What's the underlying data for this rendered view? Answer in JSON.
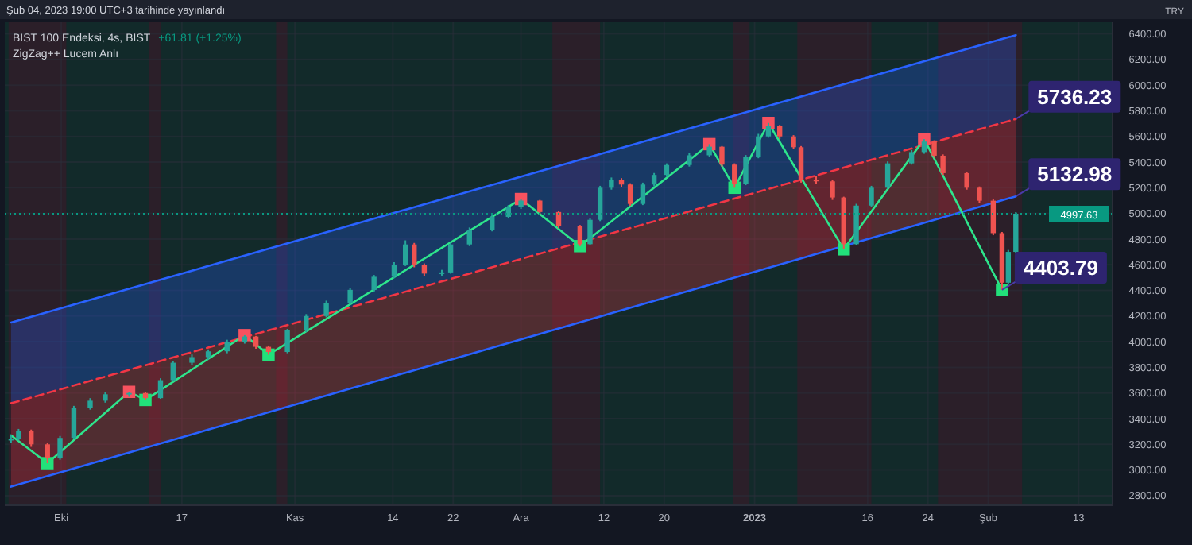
{
  "chart_data": {
    "type": "candlestick",
    "title": "BIST 100 Endeksi, 4s, BIST",
    "subtitle": "ZigZag++ Lucem Anlı",
    "annotations": [
      "+61.81 (+1.25%)",
      "Şub 04, 2023 19:00 UTC+3 tarihinde yayınlandı",
      "TRY",
      {
        "text": "5736.23",
        "x": "2023-02-04T16:00",
        "y": 5736.23
      },
      {
        "text": "5132.98",
        "x": "2023-02-04T16:00",
        "y": 5132.98
      },
      {
        "text": "4403.79",
        "x": "2023-02-02T20:00",
        "y": 4403.79
      }
    ],
    "x": [
      "2022-09-24T08:00",
      "2022-09-25T08:00",
      "2022-09-27T00:00",
      "2022-09-29T04:00",
      "2022-09-30T20:00",
      "2022-10-02T16:00",
      "2022-10-04T20:00",
      "2022-10-06T20:00",
      "2022-10-10T00:00",
      "2022-10-12T04:00",
      "2022-10-14T04:00",
      "2022-10-15T20:00",
      "2022-10-18T08:00",
      "2022-10-20T12:00",
      "2022-10-23T00:00",
      "2022-10-25T08:00",
      "2022-10-26T20:00",
      "2022-10-28T12:00",
      "2022-10-31T00:00",
      "2022-11-02T12:00",
      "2022-11-05T04:00",
      "2022-11-08T08:00",
      "2022-11-11T12:00",
      "2022-11-14T04:00",
      "2022-11-15T16:00",
      "2022-11-16T20:00",
      "2022-11-18T04:00",
      "2022-11-20T12:00",
      "2022-11-21T16:00",
      "2022-11-24T04:00",
      "2022-11-27T04:00",
      "2022-11-29T08:00",
      "2022-12-01T00:00",
      "2022-12-03T12:00",
      "2022-12-06T00:00",
      "2022-12-08T20:00",
      "2022-12-10T04:00",
      "2022-12-11T12:00",
      "2022-12-13T00:00",
      "2022-12-14T08:00",
      "2022-12-15T12:00",
      "2022-12-17T04:00",
      "2022-12-18T16:00",
      "2022-12-20T08:00",
      "2022-12-23T08:00",
      "2022-12-26T00:00",
      "2022-12-27T16:00",
      "2022-12-29T08:00",
      "2022-12-30T20:00",
      "2023-01-01T12:00",
      "2023-01-02T20:00",
      "2023-01-04T08:00",
      "2023-01-06T04:00",
      "2023-01-07T04:00",
      "2023-01-09T04:00",
      "2023-01-11T08:00",
      "2023-01-12T20:00",
      "2023-01-14T12:00",
      "2023-01-16T12:00",
      "2023-01-18T16:00",
      "2023-01-21T20:00",
      "2023-01-23T12:00",
      "2023-01-24T20:00",
      "2023-01-26T00:00",
      "2023-01-29T04:00",
      "2023-01-30T20:00",
      "2023-02-01T16:00",
      "2023-02-02T20:00",
      "2023-02-03T16:00",
      "2023-02-04T16:00"
    ],
    "ohlc": [
      [
        3230,
        3270,
        3210,
        3243
      ],
      [
        3243,
        3320,
        3230,
        3306
      ],
      [
        3306,
        3315,
        3180,
        3200
      ],
      [
        3200,
        3210,
        3053,
        3090
      ],
      [
        3090,
        3265,
        3080,
        3250
      ],
      [
        3250,
        3500,
        3240,
        3483
      ],
      [
        3483,
        3560,
        3470,
        3540
      ],
      [
        3540,
        3605,
        3525,
        3590
      ],
      [
        3590,
        3609,
        3570,
        3600
      ],
      [
        3600,
        3605,
        3546,
        3560
      ],
      [
        3560,
        3715,
        3555,
        3700
      ],
      [
        3700,
        3850,
        3690,
        3836
      ],
      [
        3836,
        3900,
        3820,
        3880
      ],
      [
        3880,
        3940,
        3860,
        3925
      ],
      [
        3925,
        4015,
        3910,
        4000
      ],
      [
        4000,
        4051,
        3985,
        4040
      ],
      [
        4040,
        4045,
        3945,
        3960
      ],
      [
        3960,
        3970,
        3899,
        3920
      ],
      [
        3920,
        4100,
        3910,
        4089
      ],
      [
        4089,
        4215,
        4075,
        4200
      ],
      [
        4200,
        4320,
        4190,
        4303
      ],
      [
        4303,
        4420,
        4290,
        4404
      ],
      [
        4404,
        4520,
        4390,
        4506
      ],
      [
        4506,
        4620,
        4495,
        4600
      ],
      [
        4600,
        4790,
        4590,
        4758
      ],
      [
        4758,
        4770,
        4580,
        4600
      ],
      [
        4600,
        4610,
        4510,
        4531
      ],
      [
        4531,
        4560,
        4515,
        4540
      ],
      [
        4540,
        4770,
        4530,
        4758
      ],
      [
        4758,
        4890,
        4745,
        4872
      ],
      [
        4872,
        4990,
        4860,
        4973
      ],
      [
        4973,
        5065,
        4960,
        5050
      ],
      [
        5050,
        5112,
        5035,
        5100
      ],
      [
        5100,
        5105,
        4995,
        5011
      ],
      [
        5011,
        5020,
        4885,
        4900
      ],
      [
        4900,
        4910,
        4745,
        4760
      ],
      [
        4760,
        4965,
        4750,
        4950
      ],
      [
        4950,
        5215,
        4940,
        5200
      ],
      [
        5200,
        5280,
        5185,
        5263
      ],
      [
        5263,
        5275,
        5205,
        5225
      ],
      [
        5225,
        5235,
        5060,
        5074
      ],
      [
        5074,
        5240,
        5065,
        5225
      ],
      [
        5225,
        5315,
        5210,
        5300
      ],
      [
        5300,
        5390,
        5285,
        5377
      ],
      [
        5377,
        5470,
        5365,
        5453
      ],
      [
        5453,
        5540,
        5440,
        5520
      ],
      [
        5520,
        5525,
        5365,
        5380
      ],
      [
        5380,
        5390,
        5200,
        5230
      ],
      [
        5230,
        5455,
        5220,
        5440
      ],
      [
        5440,
        5620,
        5430,
        5600
      ],
      [
        5600,
        5705,
        5590,
        5680
      ],
      [
        5680,
        5690,
        5580,
        5600
      ],
      [
        5600,
        5610,
        5500,
        5516
      ],
      [
        5516,
        5525,
        5240,
        5263
      ],
      [
        5263,
        5290,
        5230,
        5250
      ],
      [
        5250,
        5260,
        5105,
        5124
      ],
      [
        5124,
        5130,
        4720,
        4760
      ],
      [
        4760,
        5075,
        4750,
        5061
      ],
      [
        5061,
        5215,
        5050,
        5200
      ],
      [
        5200,
        5405,
        5190,
        5390
      ],
      [
        5390,
        5495,
        5380,
        5478
      ],
      [
        5478,
        5579,
        5465,
        5560
      ],
      [
        5560,
        5570,
        5435,
        5450
      ],
      [
        5450,
        5460,
        5300,
        5314
      ],
      [
        5314,
        5325,
        5185,
        5200
      ],
      [
        5200,
        5210,
        5080,
        5099
      ],
      [
        5099,
        5110,
        4830,
        4846
      ],
      [
        4846,
        4855,
        4403.79,
        4460
      ],
      [
        4460,
        4715,
        4450,
        4700
      ],
      [
        4700,
        5010,
        4690,
        4997.63
      ]
    ],
    "series": [
      {
        "type": "line",
        "color": "#2962ff",
        "x": [
          "2022-09-24T08:00",
          "2023-02-04T16:00"
        ],
        "values": [
          4150,
          6390
        ],
        "lower": [
          3520,
          5736.23
        ],
        "upper": [
          4150,
          6390
        ]
      },
      {
        "type": "line",
        "color": "#f23645",
        "line_style": "dashed",
        "x": [
          "2022-09-24T08:00",
          "2023-02-04T16:00"
        ],
        "values": [
          3520,
          5736.23
        ],
        "lower": [
          2870,
          5132.98
        ],
        "upper": [
          3520,
          5736.23
        ]
      },
      {
        "type": "line",
        "color": "#2962ff",
        "x": [
          "2022-09-24T08:00",
          "2023-02-04T16:00"
        ],
        "values": [
          2870,
          5132.98
        ]
      },
      {
        "type": "line",
        "color": "#2ee58c",
        "x": [
          "2022-09-24T08:00",
          "2022-09-29T04:00",
          "2022-10-10T00:00",
          "2022-10-12T04:00",
          "2022-10-25T08:00",
          "2022-10-28T12:00",
          "2022-12-01T00:00",
          "2022-12-08T20:00",
          "2022-12-26T00:00",
          "2022-12-29T08:00",
          "2023-01-02T20:00",
          "2023-01-12T20:00",
          "2023-01-23T12:00",
          "2023-02-02T20:00"
        ],
        "values": [
          3270,
          3053,
          3609,
          3546,
          4051,
          3899,
          5112,
          4745,
          5540,
          5200,
          5705,
          4720,
          5579,
          4403.79
        ]
      },
      {
        "type": "scatter",
        "marker": "square",
        "color": "#f7525f",
        "x": [
          "2022-10-10T00:00",
          "2022-10-25T08:00",
          "2022-12-01T00:00",
          "2022-12-26T00:00",
          "2023-01-02T20:00",
          "2023-01-23T12:00"
        ],
        "values": [
          3609,
          4051,
          5112,
          5540,
          5705,
          5579
        ]
      },
      {
        "type": "scatter",
        "marker": "square",
        "color": "#22e07a",
        "x": [
          "2022-09-29T04:00",
          "2022-10-12T04:00",
          "2022-10-28T12:00",
          "2022-12-08T20:00",
          "2022-12-29T08:00",
          "2023-01-12T20:00",
          "2023-02-02T20:00"
        ],
        "values": [
          3053,
          3546,
          3899,
          4745,
          5200,
          4720,
          4403.79
        ]
      }
    ],
    "bands": [
      {
        "axis": "x",
        "from": "2022-09-24T00:00",
        "to": "2022-10-01T16:00",
        "color": "#2b1f29"
      },
      {
        "axis": "x",
        "from": "2022-10-12T16:00",
        "to": "2022-10-14T04:00",
        "color": "#2b1f29"
      },
      {
        "axis": "x",
        "from": "2022-10-29T12:00",
        "to": "2022-10-31T00:00",
        "color": "#2b1f29"
      },
      {
        "axis": "x",
        "from": "2022-12-05T04:00",
        "to": "2022-12-11T12:00",
        "color": "#2b1f29"
      },
      {
        "axis": "x",
        "from": "2022-12-29T04:00",
        "to": "2022-12-31T08:00",
        "color": "#2b1f29"
      },
      {
        "axis": "x",
        "from": "2023-01-06T16:00",
        "to": "2023-01-16T12:00",
        "color": "#2b1f29"
      },
      {
        "axis": "x",
        "from": "2023-01-25T08:00",
        "to": "2023-02-05T12:00",
        "color": "#2b1f29"
      }
    ],
    "ref_lines": [
      {
        "axis": "y",
        "value": 4997.63,
        "label": "4997.63",
        "color": "#089981",
        "line_style": "dotted"
      }
    ],
    "xlim": [
      "2022-09-23T12:00",
      "2023-02-17T12:00"
    ],
    "xticks": [
      {
        "value": "2022-10-01",
        "label": "Eki"
      },
      {
        "value": "2022-10-17",
        "label": "17"
      },
      {
        "value": "2022-11-01",
        "label": "Kas"
      },
      {
        "value": "2022-11-14",
        "label": "14"
      },
      {
        "value": "2022-11-22",
        "label": "22"
      },
      {
        "value": "2022-12-01",
        "label": "Ara"
      },
      {
        "value": "2022-12-12",
        "label": "12"
      },
      {
        "value": "2022-12-20",
        "label": "20"
      },
      {
        "value": "2023-01-01",
        "label": "2023"
      },
      {
        "value": "2023-01-16",
        "label": "16"
      },
      {
        "value": "2023-01-24",
        "label": "24"
      },
      {
        "value": "2023-02-01",
        "label": "Şub"
      },
      {
        "value": "2023-02-13",
        "label": "13"
      }
    ],
    "ylim": [
      2725,
      6490
    ],
    "yticks": [
      {
        "value": 2800,
        "label": "2800.00"
      },
      {
        "value": 3000,
        "label": "3000.00"
      },
      {
        "value": 3200,
        "label": "3200.00"
      },
      {
        "value": 3400,
        "label": "3400.00"
      },
      {
        "value": 3600,
        "label": "3600.00"
      },
      {
        "value": 3800,
        "label": "3800.00"
      },
      {
        "value": 4000,
        "label": "4000.00"
      },
      {
        "value": 4200,
        "label": "4200.00"
      },
      {
        "value": 4400,
        "label": "4400.00"
      },
      {
        "value": 4600,
        "label": "4600.00"
      },
      {
        "value": 4800,
        "label": "4800.00"
      },
      {
        "value": 5000,
        "label": "5000.00"
      },
      {
        "value": 5200,
        "label": "5200.00"
      },
      {
        "value": 5400,
        "label": "5400.00"
      },
      {
        "value": 5600,
        "label": "5600.00"
      },
      {
        "value": 5800,
        "label": "5800.00"
      },
      {
        "value": 6000,
        "label": "6000.00"
      },
      {
        "value": 6200,
        "label": "6200.00"
      },
      {
        "value": 6400,
        "label": "6400.00"
      }
    ],
    "grid": true
  }
}
